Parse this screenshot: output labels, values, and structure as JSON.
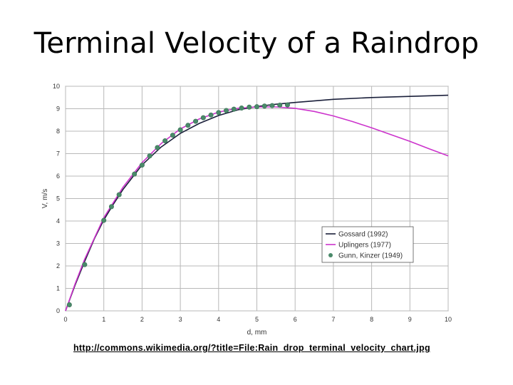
{
  "slide": {
    "title": "Terminal Velocity of a Raindrop",
    "source_link": "http://commons.wikimedia.org/?title=File:Rain_drop_terminal_velocity_chart.jpg"
  },
  "chart_data": {
    "type": "line",
    "title": "",
    "xlabel": "d, mm",
    "ylabel": "V, m/s",
    "xlim": [
      0,
      10
    ],
    "ylim": [
      0,
      10
    ],
    "xticks": [
      0,
      1,
      2,
      3,
      4,
      5,
      6,
      7,
      8,
      9,
      10
    ],
    "yticks": [
      0,
      1,
      2,
      3,
      4,
      5,
      6,
      7,
      8,
      9,
      10
    ],
    "xtick_labels": [
      "0",
      "1",
      "2",
      "3",
      "4",
      "5",
      "6",
      "7",
      "8",
      "9",
      "10"
    ],
    "ytick_labels": [
      "0",
      "1",
      "2",
      "3",
      "4",
      "5",
      "6",
      "7",
      "8",
      "9",
      "10"
    ],
    "grid": true,
    "legend_position": "lower-right",
    "series": [
      {
        "name": "Gossard (1992)",
        "kind": "line",
        "color": "#1a1f3a",
        "x": [
          0,
          0.25,
          0.5,
          0.75,
          1.0,
          1.25,
          1.5,
          2.0,
          2.5,
          3.0,
          3.5,
          4.0,
          4.5,
          5.0,
          5.5,
          6.0,
          7.0,
          8.0,
          9.0,
          10.0
        ],
        "y": [
          0,
          1.15,
          2.2,
          3.2,
          4.05,
          4.75,
          5.4,
          6.5,
          7.3,
          7.9,
          8.35,
          8.7,
          8.95,
          9.1,
          9.2,
          9.28,
          9.42,
          9.5,
          9.55,
          9.6
        ]
      },
      {
        "name": "Uplingers (1977)",
        "kind": "line",
        "color": "#cc33cc",
        "x": [
          0,
          0.25,
          0.5,
          1.0,
          1.5,
          2.0,
          2.5,
          3.0,
          3.5,
          4.0,
          4.5,
          5.0,
          5.5,
          6.0,
          6.5,
          7.0,
          7.5,
          8.0,
          8.5,
          9.0,
          9.5,
          10.0
        ],
        "y": [
          0,
          1.2,
          2.3,
          4.15,
          5.5,
          6.6,
          7.45,
          8.1,
          8.55,
          8.85,
          9.02,
          9.08,
          9.08,
          9.02,
          8.88,
          8.68,
          8.43,
          8.15,
          7.85,
          7.55,
          7.22,
          6.9
        ]
      },
      {
        "name": "Gunn, Kinzer (1949)",
        "kind": "scatter",
        "color": "#4a8a6a",
        "x": [
          0.1,
          0.5,
          1.0,
          1.2,
          1.4,
          1.8,
          2.0,
          2.2,
          2.4,
          2.6,
          2.8,
          3.0,
          3.2,
          3.4,
          3.6,
          3.8,
          4.0,
          4.2,
          4.4,
          4.6,
          4.8,
          5.0,
          5.2,
          5.4,
          5.6,
          5.8
        ],
        "y": [
          0.27,
          2.06,
          4.03,
          4.64,
          5.17,
          6.09,
          6.49,
          6.9,
          7.27,
          7.57,
          7.82,
          8.06,
          8.26,
          8.44,
          8.6,
          8.72,
          8.83,
          8.92,
          8.98,
          9.03,
          9.07,
          9.09,
          9.12,
          9.14,
          9.16,
          9.17
        ]
      }
    ]
  }
}
